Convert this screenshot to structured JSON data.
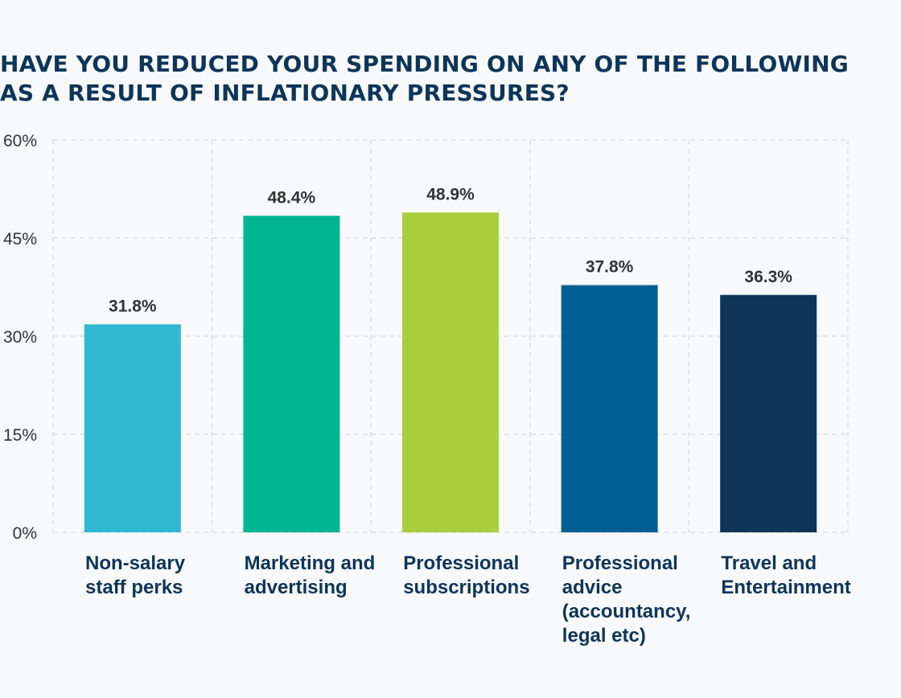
{
  "chart_data": {
    "type": "bar",
    "title": "HAVE YOU REDUCED YOUR SPENDING ON ANY OF THE FOLLOWING AS A RESULT OF INFLATIONARY PRESSURES?",
    "xlabel": "",
    "ylabel": "",
    "ylim": [
      0,
      60
    ],
    "yticks": [
      0,
      15,
      30,
      45,
      60
    ],
    "ytick_labels": [
      "0%",
      "15%",
      "30%",
      "45%",
      "60%"
    ],
    "grid": true,
    "categories": [
      [
        "Non-salary",
        "staff perks"
      ],
      [
        "Marketing and",
        "advertising"
      ],
      [
        "Professional",
        "subscriptions"
      ],
      [
        "Professional",
        "advice",
        "(accountancy,",
        "legal etc)"
      ],
      [
        "Travel and",
        "Entertainment"
      ]
    ],
    "values": [
      31.8,
      48.4,
      48.9,
      37.8,
      36.3
    ],
    "data_labels": [
      "31.8%",
      "48.4%",
      "48.9%",
      "37.8%",
      "36.3%"
    ],
    "colors": [
      "#31b8d1",
      "#00b592",
      "#a8cf3b",
      "#005f92",
      "#0c3558"
    ]
  }
}
